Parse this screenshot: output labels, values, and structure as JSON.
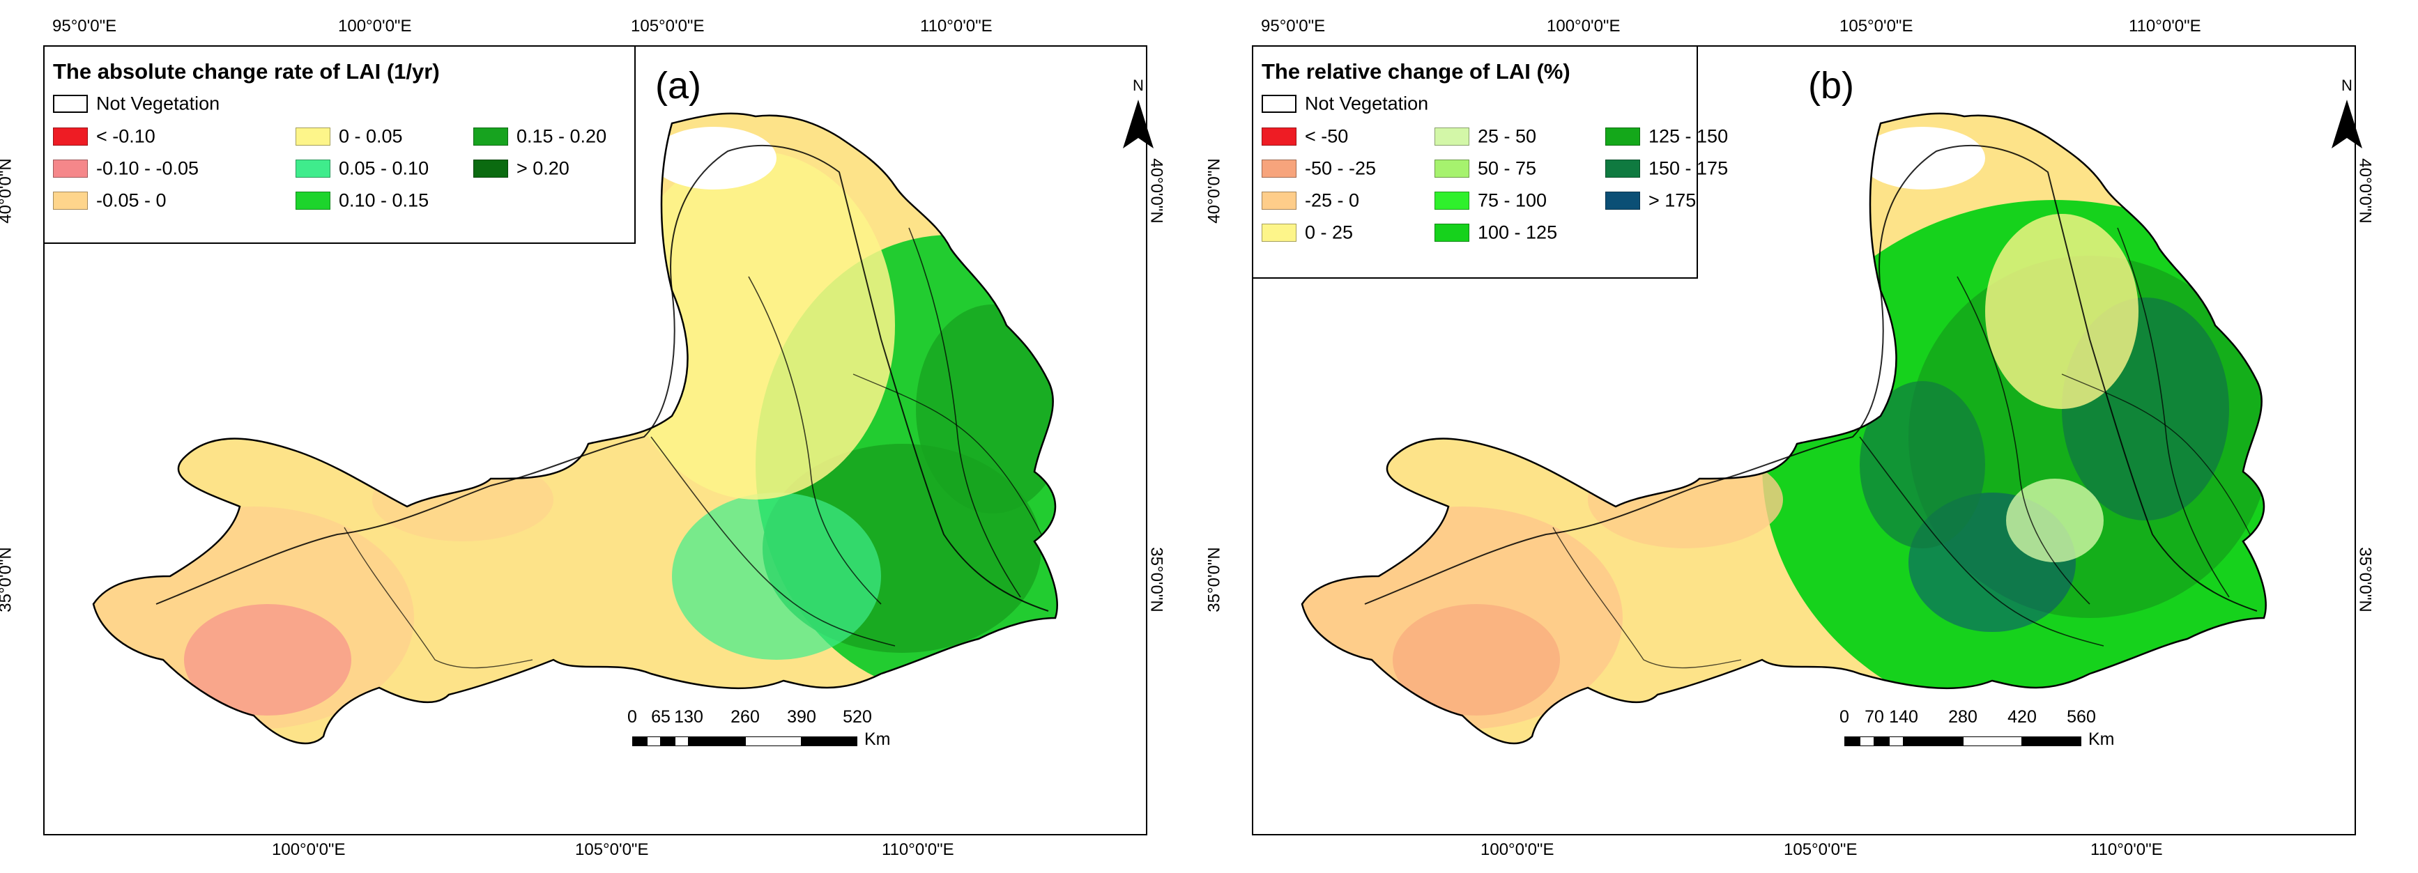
{
  "panels": [
    {
      "label": "(a)",
      "legend": {
        "title": "The absolute change rate of LAI (1/yr)",
        "not_vegetation": "Not Vegetation",
        "items": [
          {
            "label": "< -0.10",
            "color": "#ee1c24"
          },
          {
            "label": "-0.10 - -0.05",
            "color": "#f5878a"
          },
          {
            "label": "-0.05 - 0",
            "color": "#fed58c"
          },
          {
            "label": "0 - 0.05",
            "color": "#fdf58a"
          },
          {
            "label": "0.05 - 0.10",
            "color": "#3fec8c"
          },
          {
            "label": "0.10 - 0.15",
            "color": "#1dd42c"
          },
          {
            "label": "0.15 - 0.20",
            "color": "#17a31f"
          },
          {
            "label": "> 0.20",
            "color": "#0b6b10"
          }
        ]
      },
      "scale": {
        "ticks": [
          "0",
          "65",
          "130",
          "260",
          "390",
          "520"
        ],
        "unit": "Km"
      },
      "coords": {
        "top": [
          "95°0'0\"E",
          "100°0'0\"E",
          "105°0'0\"E",
          "110°0'0\"E"
        ],
        "bottom": [
          "100°0'0\"E",
          "105°0'0\"E",
          "110°0'0\"E"
        ],
        "left": [
          "40°0'0\"N",
          "35°0'0\"N"
        ],
        "right": [
          "40°0'0\"N",
          "35°0'0\"N"
        ]
      },
      "north_label": "N"
    },
    {
      "label": "(b)",
      "legend": {
        "title": "The relative change of LAI (%)",
        "not_vegetation": "Not Vegetation",
        "items": [
          {
            "label": "< -50",
            "color": "#ee1c24"
          },
          {
            "label": "-50 - -25",
            "color": "#f7a47c"
          },
          {
            "label": "-25 - 0",
            "color": "#fecd8a"
          },
          {
            "label": "0 - 25",
            "color": "#fdf58a"
          },
          {
            "label": "25 - 50",
            "color": "#d3f7a8"
          },
          {
            "label": "50 - 75",
            "color": "#a6f26e"
          },
          {
            "label": "75 - 100",
            "color": "#2ff02c"
          },
          {
            "label": "100 - 125",
            "color": "#16d21c"
          },
          {
            "label": "125 - 150",
            "color": "#14a81a"
          },
          {
            "label": "150 - 175",
            "color": "#0f7a40"
          },
          {
            "label": "> 175",
            "color": "#0b4f75"
          }
        ]
      },
      "scale": {
        "ticks": [
          "0",
          "70",
          "140",
          "280",
          "420",
          "560"
        ],
        "unit": "Km"
      },
      "coords": {
        "top": [
          "95°0'0\"E",
          "100°0'0\"E",
          "105°0'0\"E",
          "110°0'0\"E"
        ],
        "bottom": [
          "100°0'0\"E",
          "105°0'0\"E",
          "110°0'0\"E"
        ],
        "left": [
          "40°0'0\"N",
          "35°0'0\"N"
        ],
        "right": [
          "40°0'0\"N",
          "35°0'0\"N"
        ]
      },
      "north_label": "N"
    }
  ]
}
